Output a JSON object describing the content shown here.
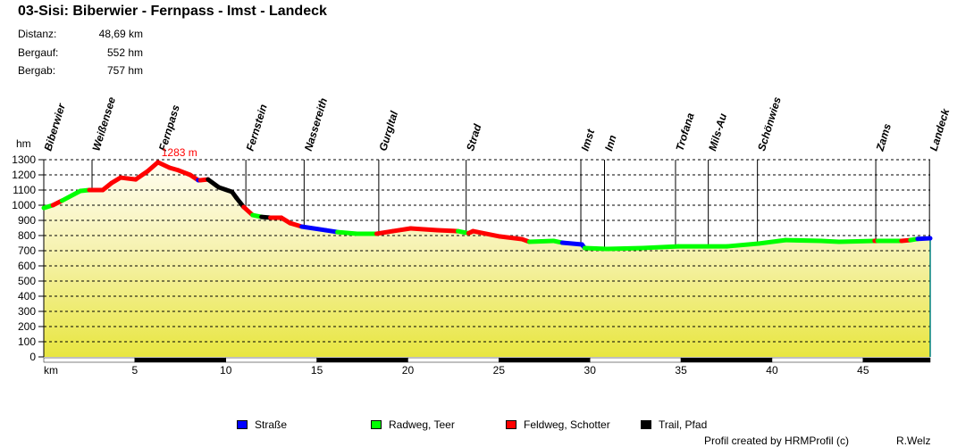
{
  "title": "03-Sisi: Biberwier - Fernpass - Imst - Landeck",
  "stats": [
    {
      "label": "Distanz:",
      "value": "48,69 km"
    },
    {
      "label": "Bergauf:",
      "value": "552 hm"
    },
    {
      "label": "Bergab:",
      "value": "757 hm"
    }
  ],
  "colors": {
    "S": "#0000ff",
    "R": "#00ff00",
    "F": "#ff0000",
    "T": "#000000",
    "peak": "#ff0000",
    "edge": "#008080"
  },
  "legend": [
    {
      "key": "S",
      "label": "Straße"
    },
    {
      "key": "R",
      "label": "Radweg, Teer"
    },
    {
      "key": "F",
      "label": "Feldweg, Schotter"
    },
    {
      "key": "T",
      "label": "Trail, Pfad"
    }
  ],
  "credit": "Profil created by HRMProfil (c)",
  "author": "R.Welz",
  "chart_data": {
    "type": "area",
    "ylabel": "hm",
    "xlabel": "km",
    "xlim": [
      0,
      48.69
    ],
    "ylim": [
      0,
      1300
    ],
    "yticks": [
      0,
      100,
      200,
      300,
      400,
      500,
      600,
      700,
      800,
      900,
      1000,
      1100,
      1200,
      1300
    ],
    "xticks": [
      5,
      10,
      15,
      20,
      25,
      30,
      35,
      40,
      45
    ],
    "grid": true,
    "peak": {
      "km": 6.27,
      "elev": 1283,
      "label": "1283 m"
    },
    "waypoints": [
      {
        "name": "Biberwier",
        "km": 0
      },
      {
        "name": "Weißensee",
        "km": 2.65
      },
      {
        "name": "Fernpass",
        "km": 6.3
      },
      {
        "name": "Fernstein",
        "km": 11.1
      },
      {
        "name": "Nassereith",
        "km": 14.3
      },
      {
        "name": "Gurgltal",
        "km": 18.4
      },
      {
        "name": "Strad",
        "km": 23.2
      },
      {
        "name": "Imst",
        "km": 29.5
      },
      {
        "name": "Inn",
        "km": 30.8
      },
      {
        "name": "Trofana",
        "km": 34.7
      },
      {
        "name": "Mils-Au",
        "km": 36.5
      },
      {
        "name": "Schönwies",
        "km": 39.2
      },
      {
        "name": "Zams",
        "km": 45.7
      },
      {
        "name": "Landeck",
        "km": 48.65
      }
    ],
    "profile": [
      [
        0,
        982,
        "R"
      ],
      [
        0.5,
        1000,
        "F"
      ],
      [
        1.0,
        1030,
        "R"
      ],
      [
        2.01,
        1094,
        "R"
      ],
      [
        2.5,
        1100,
        "F"
      ],
      [
        3.24,
        1100,
        "F"
      ],
      [
        3.73,
        1147,
        "F"
      ],
      [
        4.22,
        1182,
        "F"
      ],
      [
        5.05,
        1170,
        "F"
      ],
      [
        5.69,
        1223,
        "F"
      ],
      [
        6.27,
        1283,
        "F"
      ],
      [
        6.91,
        1247,
        "F"
      ],
      [
        7.4,
        1230,
        "F"
      ],
      [
        8.04,
        1200,
        "F"
      ],
      [
        8.48,
        1165,
        "S"
      ],
      [
        8.6,
        1165,
        "F"
      ],
      [
        9.02,
        1170,
        "T"
      ],
      [
        9.61,
        1118,
        "T"
      ],
      [
        10.34,
        1088,
        "T"
      ],
      [
        10.59,
        1047,
        "T"
      ],
      [
        10.98,
        988,
        "F"
      ],
      [
        11.47,
        935,
        "R"
      ],
      [
        11.96,
        923,
        "T"
      ],
      [
        12.45,
        918,
        "F"
      ],
      [
        13.04,
        918,
        "F"
      ],
      [
        13.53,
        882,
        "F"
      ],
      [
        14.17,
        859,
        "S"
      ],
      [
        15.49,
        835,
        "S"
      ],
      [
        16.13,
        823,
        "R"
      ],
      [
        17.21,
        812,
        "R"
      ],
      [
        18.28,
        812,
        "F"
      ],
      [
        19.17,
        829,
        "F"
      ],
      [
        20.15,
        847,
        "F"
      ],
      [
        21.62,
        835,
        "F"
      ],
      [
        22.75,
        829,
        "R"
      ],
      [
        23.33,
        815,
        "F"
      ],
      [
        23.58,
        829,
        "F"
      ],
      [
        25.05,
        794,
        "F"
      ],
      [
        26.27,
        776,
        "F"
      ],
      [
        26.67,
        759,
        "R"
      ],
      [
        27.99,
        765,
        "R"
      ],
      [
        28.48,
        753,
        "S"
      ],
      [
        29.56,
        741,
        "S"
      ],
      [
        29.71,
        718,
        "R"
      ],
      [
        30.93,
        712,
        "R"
      ],
      [
        32.89,
        718,
        "R"
      ],
      [
        34.85,
        729,
        "R"
      ],
      [
        37.55,
        729,
        "R"
      ],
      [
        39.26,
        747,
        "R"
      ],
      [
        40.74,
        770,
        "R"
      ],
      [
        42.7,
        765,
        "R"
      ],
      [
        43.68,
        759,
        "R"
      ],
      [
        45.64,
        765,
        "F"
      ],
      [
        45.8,
        765,
        "R"
      ],
      [
        47.11,
        765,
        "F"
      ],
      [
        47.6,
        770,
        "R"
      ],
      [
        48.0,
        778,
        "S"
      ],
      [
        48.69,
        782,
        null
      ]
    ]
  }
}
